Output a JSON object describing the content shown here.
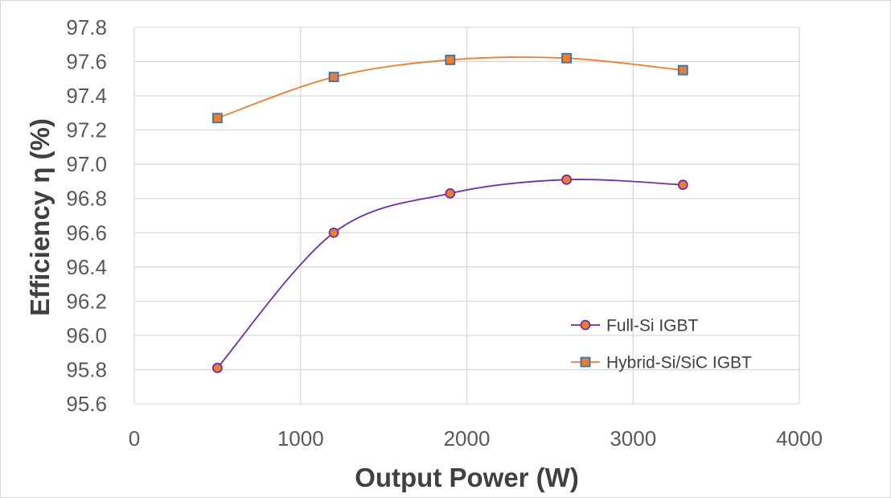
{
  "chart_data": {
    "type": "line",
    "title": "",
    "xlabel": "Output Power (W)",
    "ylabel": "Efficiency η (%)",
    "xlim": [
      0,
      4000
    ],
    "ylim": [
      95.6,
      97.8
    ],
    "xticks": [
      0,
      1000,
      2000,
      3000,
      4000
    ],
    "xtick_labels": [
      "0",
      "1000",
      "2000",
      "3000",
      "4000"
    ],
    "yticks": [
      95.6,
      95.8,
      96.0,
      96.2,
      96.4,
      96.6,
      96.8,
      97.0,
      97.2,
      97.4,
      97.6,
      97.8
    ],
    "ytick_labels": [
      "95.6",
      "95.8",
      "96.0",
      "96.2",
      "96.4",
      "96.6",
      "96.8",
      "97.0",
      "97.2",
      "97.4",
      "97.6",
      "97.8"
    ],
    "grid": true,
    "smooth": true,
    "legend_position": "bottom-right",
    "series": [
      {
        "name": "Full-Si IGBT",
        "color": "#7030a0",
        "marker": "circle",
        "marker_fill": "#ed7d31",
        "x": [
          500,
          1200,
          1900,
          2600,
          3300
        ],
        "y": [
          95.81,
          96.6,
          96.83,
          96.91,
          96.88
        ]
      },
      {
        "name": "Hybrid-Si/SiC IGBT",
        "color": "#ed7d31",
        "marker": "square",
        "marker_fill": "#ed7d31",
        "marker_stroke": "#2e75b6",
        "x": [
          500,
          1200,
          1900,
          2600,
          3300
        ],
        "y": [
          97.27,
          97.51,
          97.61,
          97.62,
          97.55
        ]
      }
    ]
  }
}
